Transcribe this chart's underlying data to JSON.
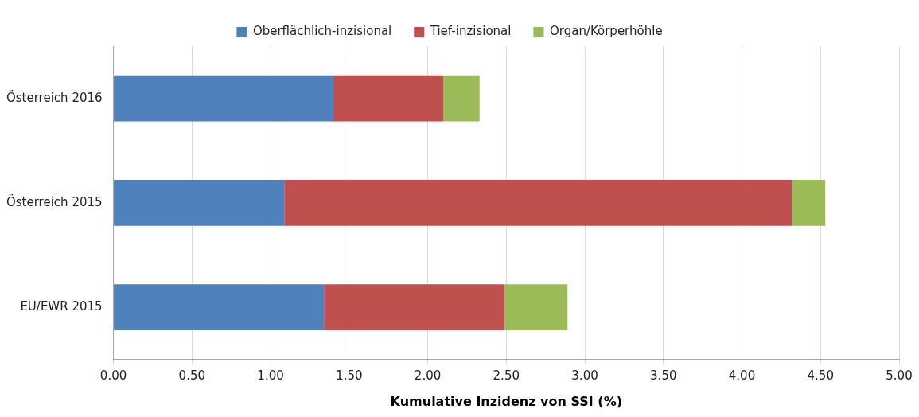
{
  "chart_data": {
    "type": "bar",
    "orientation": "horizontal",
    "stacked": true,
    "xlabel": "Kumulative Inzidenz von SSI (%)",
    "categories": [
      "Österreich 2016",
      "Österreich 2015",
      "EU/EWR 2015"
    ],
    "series": [
      {
        "name": "Oberflächlich-inzisional",
        "color": "#4f81bd",
        "values": [
          1.4,
          1.09,
          1.34
        ]
      },
      {
        "name": "Tief-inzisional",
        "color": "#c0504d",
        "values": [
          0.7,
          3.23,
          1.15
        ]
      },
      {
        "name": "Organ/Körperhöhle",
        "color": "#9bbb59",
        "values": [
          0.23,
          0.21,
          0.4
        ]
      }
    ],
    "xlim": [
      0,
      5
    ],
    "xticks": [
      {
        "value": 0,
        "label": "0.00"
      },
      {
        "value": 0.5,
        "label": "0.50"
      },
      {
        "value": 1,
        "label": "1.00"
      },
      {
        "value": 1.5,
        "label": "1.50"
      },
      {
        "value": 2,
        "label": "2.00"
      },
      {
        "value": 2.5,
        "label": "2.50"
      },
      {
        "value": 3,
        "label": "3.00"
      },
      {
        "value": 3.5,
        "label": "3.50"
      },
      {
        "value": 4,
        "label": "4.00"
      },
      {
        "value": 4.5,
        "label": "4.50"
      },
      {
        "value": 5,
        "label": "5.00"
      }
    ],
    "grid": "x",
    "legend": "top"
  }
}
